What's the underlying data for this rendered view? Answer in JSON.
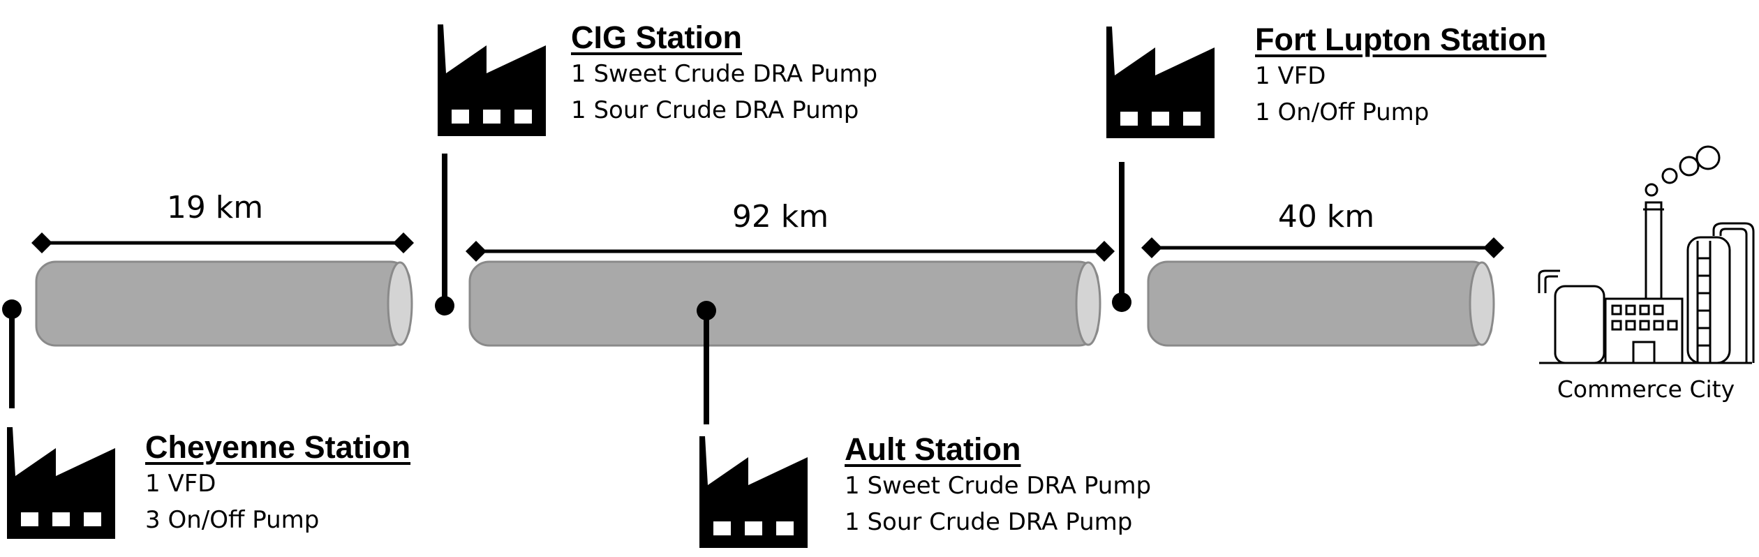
{
  "stations": {
    "cig": {
      "name": "CIG Station",
      "equipment": [
        "1 Sweet Crude DRA Pump",
        "1 Sour Crude DRA Pump"
      ]
    },
    "fort_lupton": {
      "name": "Fort Lupton Station",
      "equipment": [
        "1 VFD",
        "1 On/Off Pump"
      ]
    },
    "cheyenne": {
      "name": "Cheyenne Station",
      "equipment": [
        "1 VFD",
        "3 On/Off Pump"
      ]
    },
    "ault": {
      "name": "Ault Station",
      "equipment": [
        "1 Sweet Crude DRA Pump",
        "1 Sour Crude DRA Pump"
      ]
    }
  },
  "segments": [
    {
      "distance": "19 km"
    },
    {
      "distance": "92 km"
    },
    {
      "distance": "40 km"
    }
  ],
  "destination": {
    "name": "Commerce City"
  },
  "icons": {
    "station": "factory-icon",
    "destination": "refinery-icon"
  },
  "colors": {
    "pipe_fill": "#a9a9a9",
    "pipe_end": "#d4d4d4",
    "pipe_stroke": "#8a8a8a",
    "ink": "#000000"
  }
}
